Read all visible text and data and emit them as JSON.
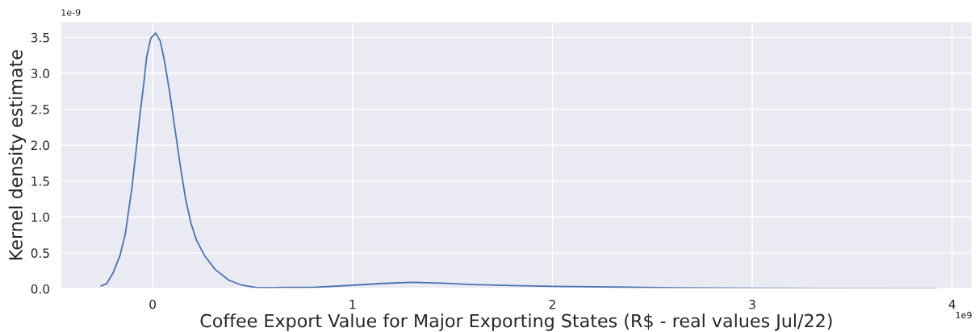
{
  "chart_data": {
    "type": "line",
    "xlabel": "Coffee Export Value for Major Exporting States (R$ - real values Jul/22)",
    "ylabel": "Kernel density estimate",
    "annotations": [
      "1e-9",
      "1e9"
    ],
    "xlim": [
      -0.46,
      4.1
    ],
    "ylim": [
      0,
      3.72
    ],
    "xticks": [
      0,
      1,
      2,
      3,
      4
    ],
    "yticks": [
      {
        "value": 0,
        "label": "0.0"
      },
      {
        "value": 0.5,
        "label": "0.5"
      },
      {
        "value": 1,
        "label": "1.0"
      },
      {
        "value": 1.5,
        "label": "1.5"
      },
      {
        "value": 2,
        "label": "2.0"
      },
      {
        "value": 2.5,
        "label": "2.5"
      },
      {
        "value": 3,
        "label": "3.0"
      },
      {
        "value": 3.5,
        "label": "3.5"
      }
    ],
    "grid": true,
    "series": [
      {
        "color": "#4c72b0",
        "x": [
          -0.258,
          -0.231,
          -0.198,
          -0.164,
          -0.137,
          -0.104,
          -0.083,
          -0.063,
          -0.043,
          -0.03,
          -0.009,
          0.015,
          0.038,
          0.058,
          0.085,
          0.112,
          0.139,
          0.165,
          0.192,
          0.219,
          0.26,
          0.313,
          0.381,
          0.448,
          0.515,
          0.582,
          0.65,
          0.8,
          1.0,
          1.15,
          1.3,
          1.45,
          1.6,
          1.8,
          2.0,
          2.3,
          2.6,
          3.0,
          3.4,
          3.92
        ],
        "values": [
          0.04,
          0.07,
          0.22,
          0.46,
          0.76,
          1.4,
          1.92,
          2.44,
          2.89,
          3.23,
          3.49,
          3.56,
          3.45,
          3.19,
          2.74,
          2.22,
          1.7,
          1.25,
          0.91,
          0.68,
          0.46,
          0.27,
          0.12,
          0.05,
          0.02,
          0.015,
          0.02,
          0.02,
          0.05,
          0.075,
          0.09,
          0.08,
          0.06,
          0.045,
          0.035,
          0.025,
          0.015,
          0.01,
          0.005,
          0.003
        ]
      }
    ]
  }
}
